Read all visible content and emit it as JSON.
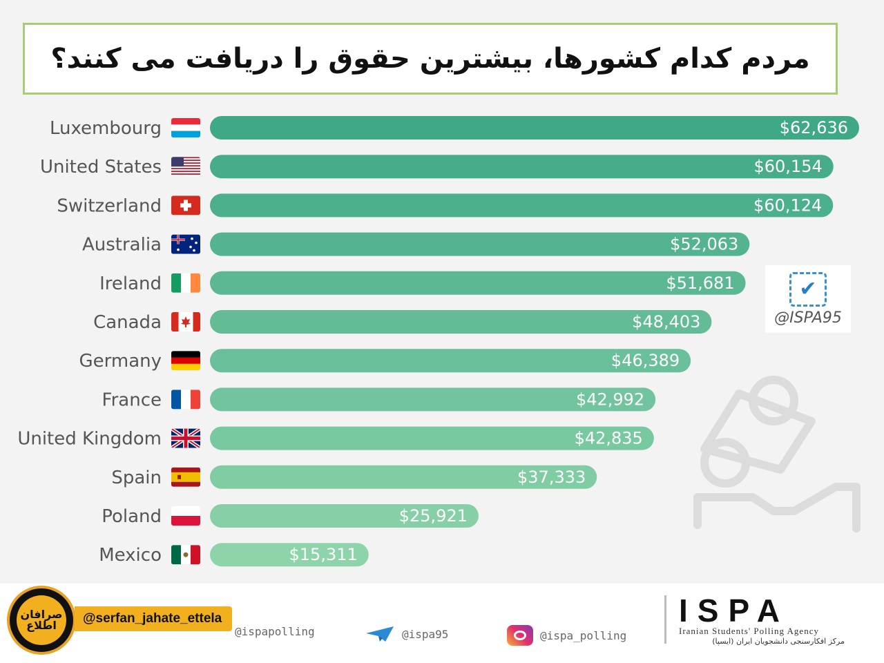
{
  "title": "مردم کدام کشورها، بیشترین حقوق را دریافت می کنند؟",
  "chart_data": {
    "type": "bar",
    "orientation": "horizontal",
    "categories": [
      "Luxembourg",
      "United States",
      "Switzerland",
      "Australia",
      "Ireland",
      "Canada",
      "Germany",
      "France",
      "United Kingdom",
      "Spain",
      "Poland",
      "Mexico"
    ],
    "values": [
      62636,
      60154,
      60124,
      52063,
      51681,
      48403,
      46389,
      42992,
      42835,
      37333,
      25921,
      15311
    ],
    "value_labels": [
      "$62,636",
      "$60,154",
      "$60,124",
      "$52,063",
      "$51,681",
      "$48,403",
      "$46,389",
      "$42,992",
      "$42,835",
      "$37,333",
      "$25,921",
      "$15,311"
    ],
    "flags": [
      "flag-luxembourg",
      "flag-usa",
      "flag-switzerland",
      "flag-australia",
      "flag-ireland",
      "flag-canada",
      "flag-germany",
      "flag-france",
      "flag-uk",
      "flag-spain",
      "flag-poland",
      "flag-mexico"
    ],
    "xlim": [
      0,
      62636
    ],
    "bar_color_top": "#3fa886",
    "bar_color_bottom": "#8ed4aa",
    "grid": false,
    "legend": "none"
  },
  "stamp": {
    "handle": "@ISPA95"
  },
  "footer": {
    "logo_text": "صرافان اطلاع",
    "handle": "@serfan_jahate_ettela",
    "links": [
      {
        "icon": "",
        "text": "@ispapolling"
      },
      {
        "icon": "telegram-icon",
        "text": "@ispa95"
      },
      {
        "icon": "instagram-icon",
        "text": "@ispa_polling"
      }
    ],
    "agency_name": "ISPA",
    "agency_en": "Iranian Students' Polling Agency",
    "agency_fa": "مرکز افکارسنجی دانشجویان ایران (ایسپا)"
  }
}
